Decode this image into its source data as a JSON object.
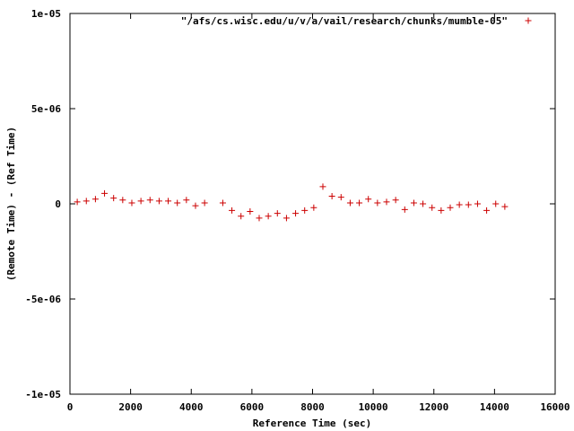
{
  "chart_data": {
    "type": "scatter",
    "title": "",
    "xlabel": "Reference Time (sec)",
    "ylabel": "(Remote Time) - (Ref Time)",
    "xlim": [
      0,
      16000
    ],
    "ylim": [
      -1e-05,
      1e-05
    ],
    "x_ticks": [
      0,
      2000,
      4000,
      6000,
      8000,
      10000,
      12000,
      14000,
      16000
    ],
    "x_tick_labels": [
      "0",
      "2000",
      "4000",
      "6000",
      "8000",
      "10000",
      "12000",
      "14000",
      "16000"
    ],
    "y_ticks": [
      -1e-05,
      -5e-06,
      0,
      5e-06,
      1e-05
    ],
    "y_tick_labels": [
      "-1e-05",
      "-5e-06",
      "0",
      "5e-06",
      "1e-05"
    ],
    "grid": false,
    "legend_position": "top-right",
    "marker": "plus",
    "series": [
      {
        "name": "\"/afs/cs.wisc.edu/u/v/a/vail/research/chunks/mumble-05\"",
        "color": "#cc0000",
        "points": [
          [
            240,
            1e-07
          ],
          [
            540,
            1.5e-07
          ],
          [
            840,
            2.5e-07
          ],
          [
            1140,
            5.5e-07
          ],
          [
            1440,
            3e-07
          ],
          [
            1740,
            2e-07
          ],
          [
            2040,
            5e-08
          ],
          [
            2340,
            1.5e-07
          ],
          [
            2640,
            2e-07
          ],
          [
            2940,
            1.5e-07
          ],
          [
            3240,
            1.5e-07
          ],
          [
            3540,
            5e-08
          ],
          [
            3840,
            2e-07
          ],
          [
            4140,
            -1e-07
          ],
          [
            4440,
            5e-08
          ],
          [
            5040,
            5e-08
          ],
          [
            5340,
            -3.5e-07
          ],
          [
            5640,
            -6.5e-07
          ],
          [
            5940,
            -4e-07
          ],
          [
            6240,
            -7.5e-07
          ],
          [
            6540,
            -6.5e-07
          ],
          [
            6840,
            -5e-07
          ],
          [
            7140,
            -7.5e-07
          ],
          [
            7440,
            -5e-07
          ],
          [
            7740,
            -3.5e-07
          ],
          [
            8040,
            -2e-07
          ],
          [
            8340,
            9e-07
          ],
          [
            8640,
            4e-07
          ],
          [
            8940,
            3.5e-07
          ],
          [
            9240,
            5e-08
          ],
          [
            9540,
            5e-08
          ],
          [
            9840,
            2.5e-07
          ],
          [
            10140,
            5e-08
          ],
          [
            10440,
            1e-07
          ],
          [
            10740,
            2e-07
          ],
          [
            11040,
            -3e-07
          ],
          [
            11340,
            5e-08
          ],
          [
            11640,
            0.0
          ],
          [
            11940,
            -2e-07
          ],
          [
            12240,
            -3.5e-07
          ],
          [
            12540,
            -2e-07
          ],
          [
            12840,
            -5e-08
          ],
          [
            13140,
            -5e-08
          ],
          [
            13440,
            0.0
          ],
          [
            13740,
            -3.5e-07
          ],
          [
            14040,
            0.0
          ],
          [
            14340,
            -1.5e-07
          ]
        ]
      }
    ]
  }
}
